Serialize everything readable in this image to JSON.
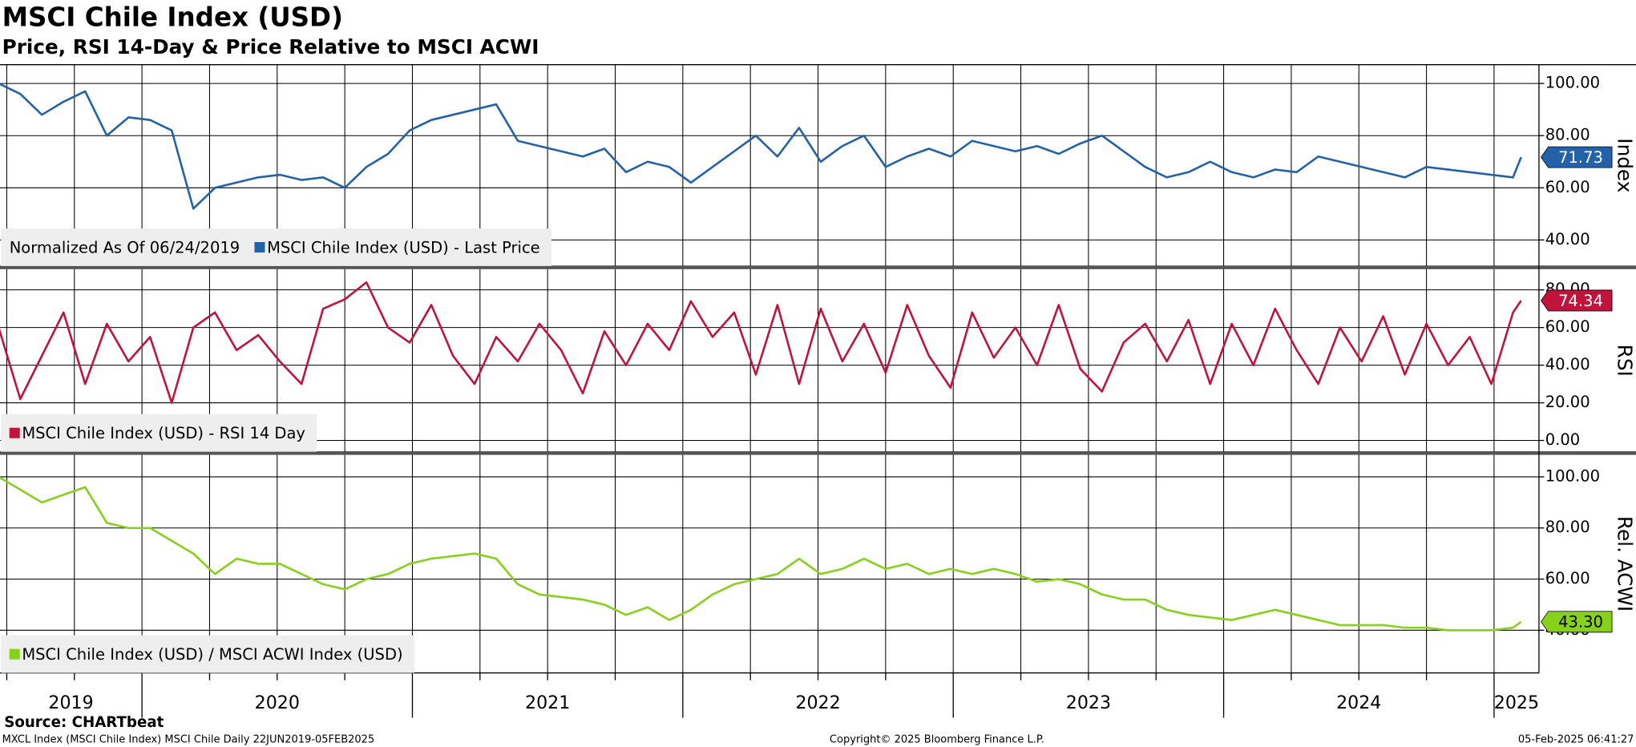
{
  "title": "MSCI Chile Index (USD)",
  "subtitle": "Price, RSI 14-Day & Price Relative to MSCI ACWI",
  "footer": {
    "source": "Source: CHARTbeat",
    "left": "MXCL Index (MSCI Chile Index) MSCI Chile  Daily 22JUN2019-05FEB2025",
    "center": "Copyright© 2025 Bloomberg Finance L.P.",
    "right": "05-Feb-2025 06:41:27"
  },
  "chart_data": [
    {
      "type": "line",
      "y_label": "Index",
      "note": "Normalized As Of 06/24/2019",
      "ylim": [
        30,
        107.2
      ],
      "yticks": [
        {
          "value": 40,
          "label": "40.00"
        },
        {
          "value": 60,
          "label": "60.00"
        },
        {
          "value": 80,
          "label": "80.00"
        },
        {
          "value": 100,
          "label": "100.00"
        }
      ],
      "grid": true,
      "x": [
        2019.47,
        2019.55,
        2019.63,
        2019.71,
        2019.79,
        2019.87,
        2019.95,
        2020.03,
        2020.11,
        2020.19,
        2020.27,
        2020.35,
        2020.43,
        2020.51,
        2020.59,
        2020.67,
        2020.75,
        2020.83,
        2020.91,
        2020.99,
        2021.07,
        2021.15,
        2021.23,
        2021.31,
        2021.39,
        2021.47,
        2021.55,
        2021.63,
        2021.71,
        2021.79,
        2021.87,
        2021.95,
        2022.03,
        2022.11,
        2022.19,
        2022.27,
        2022.35,
        2022.43,
        2022.51,
        2022.59,
        2022.67,
        2022.75,
        2022.83,
        2022.91,
        2022.99,
        2023.07,
        2023.15,
        2023.23,
        2023.31,
        2023.39,
        2023.47,
        2023.55,
        2023.63,
        2023.71,
        2023.79,
        2023.87,
        2023.95,
        2024.03,
        2024.11,
        2024.19,
        2024.27,
        2024.35,
        2024.43,
        2024.51,
        2024.59,
        2024.67,
        2024.75,
        2024.83,
        2024.91,
        2024.99,
        2025.07,
        2025.1
      ],
      "series": [
        {
          "name": "MSCI Chile Index (USD) - Last Price",
          "color": "#2362a8",
          "last_value_label": "71.73",
          "values": [
            100,
            96,
            88,
            93,
            97,
            80,
            87,
            86,
            82,
            52,
            60,
            62,
            64,
            65,
            63,
            64,
            60,
            68,
            73,
            82,
            86,
            88,
            90,
            92,
            78,
            76,
            74,
            72,
            75,
            66,
            70,
            68,
            62,
            68,
            74,
            80,
            72,
            83,
            70,
            76,
            80,
            68,
            72,
            75,
            72,
            78,
            76,
            74,
            76,
            73,
            77,
            80,
            74,
            68,
            64,
            66,
            70,
            66,
            64,
            67,
            66,
            72,
            70,
            68,
            66,
            64,
            68,
            67,
            66,
            65,
            64,
            71.73
          ]
        }
      ]
    },
    {
      "type": "line",
      "y_label": "RSI",
      "ylim": [
        -6,
        91
      ],
      "yticks": [
        {
          "value": 0,
          "label": "0.00"
        },
        {
          "value": 20,
          "label": "20.00"
        },
        {
          "value": 40,
          "label": "40.00"
        },
        {
          "value": 60,
          "label": "60.00"
        },
        {
          "value": 80,
          "label": "80.00"
        }
      ],
      "grid": true,
      "x": [
        2019.47,
        2019.55,
        2019.63,
        2019.71,
        2019.79,
        2019.87,
        2019.95,
        2020.03,
        2020.11,
        2020.19,
        2020.27,
        2020.35,
        2020.43,
        2020.51,
        2020.59,
        2020.67,
        2020.75,
        2020.83,
        2020.91,
        2020.99,
        2021.07,
        2021.15,
        2021.23,
        2021.31,
        2021.39,
        2021.47,
        2021.55,
        2021.63,
        2021.71,
        2021.79,
        2021.87,
        2021.95,
        2022.03,
        2022.11,
        2022.19,
        2022.27,
        2022.35,
        2022.43,
        2022.51,
        2022.59,
        2022.67,
        2022.75,
        2022.83,
        2022.91,
        2022.99,
        2023.07,
        2023.15,
        2023.23,
        2023.31,
        2023.39,
        2023.47,
        2023.55,
        2023.63,
        2023.71,
        2023.79,
        2023.87,
        2023.95,
        2024.03,
        2024.11,
        2024.19,
        2024.27,
        2024.35,
        2024.43,
        2024.51,
        2024.59,
        2024.67,
        2024.75,
        2024.83,
        2024.91,
        2024.99,
        2025.07,
        2025.1
      ],
      "series": [
        {
          "name": "MSCI Chile Index (USD) - RSI 14 Day",
          "color": "#c0143c",
          "last_value_label": "74.34",
          "values": [
            60,
            22,
            45,
            68,
            30,
            62,
            42,
            55,
            20,
            60,
            68,
            48,
            56,
            42,
            30,
            70,
            75,
            84,
            60,
            52,
            72,
            45,
            30,
            55,
            42,
            62,
            48,
            25,
            58,
            40,
            62,
            48,
            74,
            55,
            68,
            35,
            72,
            30,
            70,
            42,
            62,
            36,
            72,
            45,
            28,
            68,
            44,
            60,
            40,
            72,
            38,
            26,
            52,
            62,
            42,
            64,
            30,
            62,
            40,
            70,
            48,
            30,
            60,
            42,
            66,
            35,
            62,
            40,
            55,
            30,
            68,
            74.34
          ]
        }
      ]
    },
    {
      "type": "line",
      "y_label": "Rel. ACWI",
      "ylim": [
        23.3,
        108.6
      ],
      "yticks": [
        {
          "value": 40,
          "label": "40.00"
        },
        {
          "value": 60,
          "label": "60.00"
        },
        {
          "value": 80,
          "label": "80.00"
        },
        {
          "value": 100,
          "label": "100.00"
        }
      ],
      "grid": true,
      "xlim": [
        2019.475,
        2025.166
      ],
      "xticks": [
        2019,
        2020,
        2021,
        2022,
        2023,
        2024,
        2025
      ],
      "x_minor_ticks": [
        2019.5,
        2019.75,
        2020.25,
        2020.5,
        2020.75,
        2021.25,
        2021.5,
        2021.75,
        2022.25,
        2022.5,
        2022.75,
        2023.25,
        2023.5,
        2023.75,
        2024.25,
        2024.5,
        2024.75
      ],
      "x": [
        2019.47,
        2019.55,
        2019.63,
        2019.71,
        2019.79,
        2019.87,
        2019.95,
        2020.03,
        2020.11,
        2020.19,
        2020.27,
        2020.35,
        2020.43,
        2020.51,
        2020.59,
        2020.67,
        2020.75,
        2020.83,
        2020.91,
        2020.99,
        2021.07,
        2021.15,
        2021.23,
        2021.31,
        2021.39,
        2021.47,
        2021.55,
        2021.63,
        2021.71,
        2021.79,
        2021.87,
        2021.95,
        2022.03,
        2022.11,
        2022.19,
        2022.27,
        2022.35,
        2022.43,
        2022.51,
        2022.59,
        2022.67,
        2022.75,
        2022.83,
        2022.91,
        2022.99,
        2023.07,
        2023.15,
        2023.23,
        2023.31,
        2023.39,
        2023.47,
        2023.55,
        2023.63,
        2023.71,
        2023.79,
        2023.87,
        2023.95,
        2024.03,
        2024.11,
        2024.19,
        2024.27,
        2024.35,
        2024.43,
        2024.51,
        2024.59,
        2024.67,
        2024.75,
        2024.83,
        2024.91,
        2024.99,
        2025.07,
        2025.1
      ],
      "series": [
        {
          "name": "MSCI Chile Index (USD) / MSCI ACWI Index (USD)",
          "color": "#86d11a",
          "last_value_label": "43.30",
          "values": [
            100,
            95,
            90,
            93,
            96,
            82,
            80,
            80,
            75,
            70,
            62,
            68,
            66,
            66,
            62,
            58,
            56,
            60,
            62,
            66,
            68,
            69,
            70,
            68,
            58,
            54,
            53,
            52,
            50,
            46,
            49,
            44,
            48,
            54,
            58,
            60,
            62,
            68,
            62,
            64,
            68,
            64,
            66,
            62,
            64,
            62,
            64,
            62,
            59,
            60,
            58,
            54,
            52,
            52,
            48,
            46,
            45,
            44,
            46,
            48,
            46,
            44,
            42,
            42,
            42,
            41,
            41,
            40,
            40,
            40,
            41,
            43.3
          ]
        }
      ]
    }
  ]
}
